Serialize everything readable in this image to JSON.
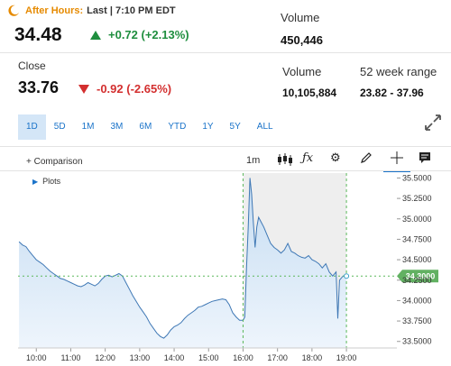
{
  "header": {
    "after_hours_label": "After Hours:",
    "after_hours_time": "Last | 7:10 PM EDT",
    "ah_price": "34.48",
    "ah_change": "+0.72 (+2.13%)",
    "ah_volume_label": "Volume",
    "ah_volume": "450,446"
  },
  "close": {
    "label": "Close",
    "price": "33.76",
    "change": "-0.92 (-2.65%)",
    "volume_label": "Volume",
    "volume": "10,105,884",
    "range_label": "52 week range",
    "range": "23.82 - 37.96"
  },
  "time_ranges": [
    "1D",
    "5D",
    "1M",
    "3M",
    "6M",
    "YTD",
    "1Y",
    "5Y",
    "ALL"
  ],
  "active_range": "1D",
  "toolbar": {
    "comparison_label": "+ Comparison",
    "interval": "1m",
    "plots_label": "Plots"
  },
  "colors": {
    "up": "#1e8e3e",
    "down": "#d32f2f",
    "accent": "#1a73c9",
    "after_hours": "#e68a00",
    "marker": "#5bb85b"
  },
  "icons": [
    "moon-icon",
    "arrow-up-icon",
    "arrow-down-icon",
    "expand-icon",
    "candlestick-icon",
    "fx-icon",
    "gear-icon",
    "pencil-icon",
    "crosshair-icon",
    "comment-icon"
  ],
  "chart_data": {
    "type": "area",
    "x_ticks": [
      "10:00",
      "11:00",
      "12:00",
      "13:00",
      "14:00",
      "15:00",
      "16:00",
      "17:00",
      "18:00",
      "19:00"
    ],
    "y_ticks": [
      "35.5000",
      "35.2500",
      "35.0000",
      "34.7500",
      "34.5000",
      "34.2500",
      "34.0000",
      "33.7500",
      "33.5000"
    ],
    "ylim": [
      33.42,
      35.56
    ],
    "xlim": [
      9.47,
      19.6
    ],
    "current_price_label": "34.3000",
    "current_price": 34.3,
    "session_markers": [
      16.0,
      19.0
    ],
    "x": [
      9.5,
      9.6,
      9.7,
      9.8,
      9.9,
      10.0,
      10.1,
      10.2,
      10.3,
      10.4,
      10.5,
      10.6,
      10.7,
      10.8,
      10.9,
      11.0,
      11.1,
      11.2,
      11.3,
      11.4,
      11.5,
      11.6,
      11.7,
      11.8,
      11.9,
      12.0,
      12.1,
      12.2,
      12.3,
      12.4,
      12.5,
      12.6,
      12.7,
      12.8,
      12.9,
      13.0,
      13.1,
      13.2,
      13.3,
      13.4,
      13.5,
      13.6,
      13.7,
      13.8,
      13.9,
      14.0,
      14.1,
      14.2,
      14.3,
      14.4,
      14.5,
      14.6,
      14.7,
      14.8,
      14.9,
      15.0,
      15.1,
      15.2,
      15.3,
      15.4,
      15.5,
      15.6,
      15.7,
      15.8,
      15.9,
      16.0,
      16.05,
      16.1,
      16.15,
      16.2,
      16.25,
      16.3,
      16.35,
      16.4,
      16.45,
      16.5,
      16.6,
      16.7,
      16.8,
      16.9,
      17.0,
      17.1,
      17.2,
      17.3,
      17.4,
      17.5,
      17.6,
      17.7,
      17.8,
      17.9,
      18.0,
      18.1,
      18.2,
      18.3,
      18.4,
      18.5,
      18.6,
      18.7,
      18.75,
      18.8,
      18.9,
      19.0
    ],
    "y": [
      34.72,
      34.68,
      34.66,
      34.6,
      34.55,
      34.5,
      34.47,
      34.44,
      34.4,
      34.36,
      34.33,
      34.3,
      34.27,
      34.26,
      34.24,
      34.22,
      34.2,
      34.18,
      34.17,
      34.19,
      34.22,
      34.2,
      34.18,
      34.21,
      34.26,
      34.3,
      34.31,
      34.29,
      34.31,
      34.33,
      34.3,
      34.22,
      34.14,
      34.06,
      33.99,
      33.92,
      33.86,
      33.8,
      33.72,
      33.66,
      33.6,
      33.56,
      33.54,
      33.58,
      33.64,
      33.68,
      33.7,
      33.73,
      33.78,
      33.82,
      33.85,
      33.88,
      33.92,
      33.93,
      33.95,
      33.97,
      33.99,
      34.0,
      34.01,
      34.02,
      34.01,
      33.95,
      33.85,
      33.8,
      33.76,
      33.76,
      33.8,
      34.4,
      34.9,
      35.5,
      35.3,
      34.95,
      34.65,
      34.9,
      35.02,
      34.98,
      34.9,
      34.8,
      34.7,
      34.65,
      34.62,
      34.58,
      34.62,
      34.7,
      34.6,
      34.58,
      34.55,
      34.53,
      34.52,
      34.55,
      34.5,
      34.48,
      34.45,
      34.4,
      34.45,
      34.35,
      34.3,
      34.35,
      33.78,
      34.25,
      34.3,
      34.3
    ]
  }
}
